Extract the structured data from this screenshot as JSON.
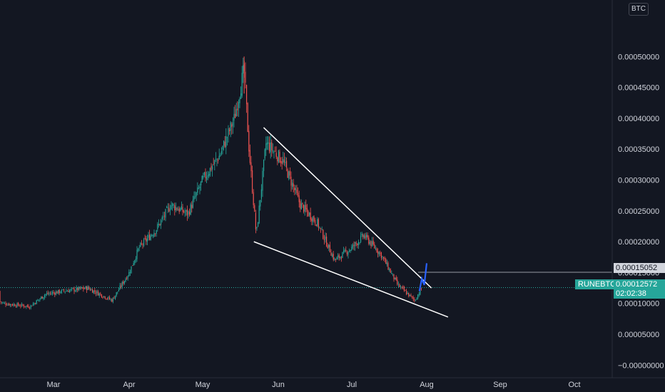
{
  "chart_data": {
    "type": "candlestick",
    "symbol": "RUNEBTC",
    "unit": "BTC",
    "x_tick_labels": [
      "Mar",
      "Apr",
      "May",
      "Jun",
      "Jul",
      "Aug",
      "Sep",
      "Oct"
    ],
    "y_tick_labels": [
      "0.00050000",
      "0.00045000",
      "0.00040000",
      "0.00035000",
      "0.00030000",
      "0.00025000",
      "0.00020000",
      "0.00015000",
      "0.00010000",
      "0.00005000",
      "−0.00000000"
    ],
    "y_ticks": [
      0.0005,
      0.00045,
      0.0004,
      0.00035,
      0.0003,
      0.00025,
      0.0002,
      0.00015,
      0.0001,
      5e-05,
      0
    ],
    "ylim": [
      -1e-05,
      0.00055
    ],
    "grid": false,
    "price_path": [
      [
        "Feb 1",
        0.00012
      ],
      [
        "Feb 10",
        0.0001
      ],
      [
        "Feb 20",
        9.5e-05
      ],
      [
        "Feb 26",
        0.000115
      ],
      [
        "Mar 5",
        0.00012
      ],
      [
        "Mar 15",
        0.000125
      ],
      [
        "Mar 25",
        0.000105
      ],
      [
        "Apr 1",
        0.00015
      ],
      [
        "Apr 5",
        0.00019
      ],
      [
        "Apr 12",
        0.00022
      ],
      [
        "Apr 18",
        0.00026
      ],
      [
        "Apr 25",
        0.000245
      ],
      [
        "May 1",
        0.0003
      ],
      [
        "May 8",
        0.00034
      ],
      [
        "May 14",
        0.0004
      ],
      [
        "May 18",
        0.00048
      ],
      [
        "May 20",
        0.00035
      ],
      [
        "May 23",
        0.00021
      ],
      [
        "May 27",
        0.00036
      ],
      [
        "Jun 3",
        0.00033
      ],
      [
        "Jun 10",
        0.00026
      ],
      [
        "Jun 17",
        0.00023
      ],
      [
        "Jun 24",
        0.00017
      ],
      [
        "Jul 1",
        0.00019
      ],
      [
        "Jul 6",
        0.00021
      ],
      [
        "Jul 13",
        0.00018
      ],
      [
        "Jul 20",
        0.00013
      ],
      [
        "Jul 27",
        0.000105
      ],
      [
        "Jul 30",
        0.000125
      ]
    ],
    "annotations": {
      "upper_trendline": [
        [
          "May 26",
          0.000385
        ],
        [
          "Aug 3",
          0.000125
        ]
      ],
      "lower_trendline": [
        [
          "May 22",
          0.0002
        ],
        [
          "Aug 10",
          7.8e-05
        ]
      ],
      "projection": [
        [
          "Jul 29",
          0.00012
        ],
        [
          "Jul 30",
          0.00014
        ],
        [
          "Jul 31",
          0.00013
        ],
        [
          "Aug 1",
          0.000165
        ]
      ],
      "horizontal_level": 0.00015052
    },
    "price_labels": {
      "level": "0.00015052",
      "symbol": "RUNEBTC",
      "last_price": "0.00012572",
      "countdown": "02:02:38"
    },
    "colors": {
      "background": "#131722",
      "up": "#26a69a",
      "down": "#ef5350",
      "trendline": "#ffffff",
      "projection": "#2962ff"
    }
  }
}
